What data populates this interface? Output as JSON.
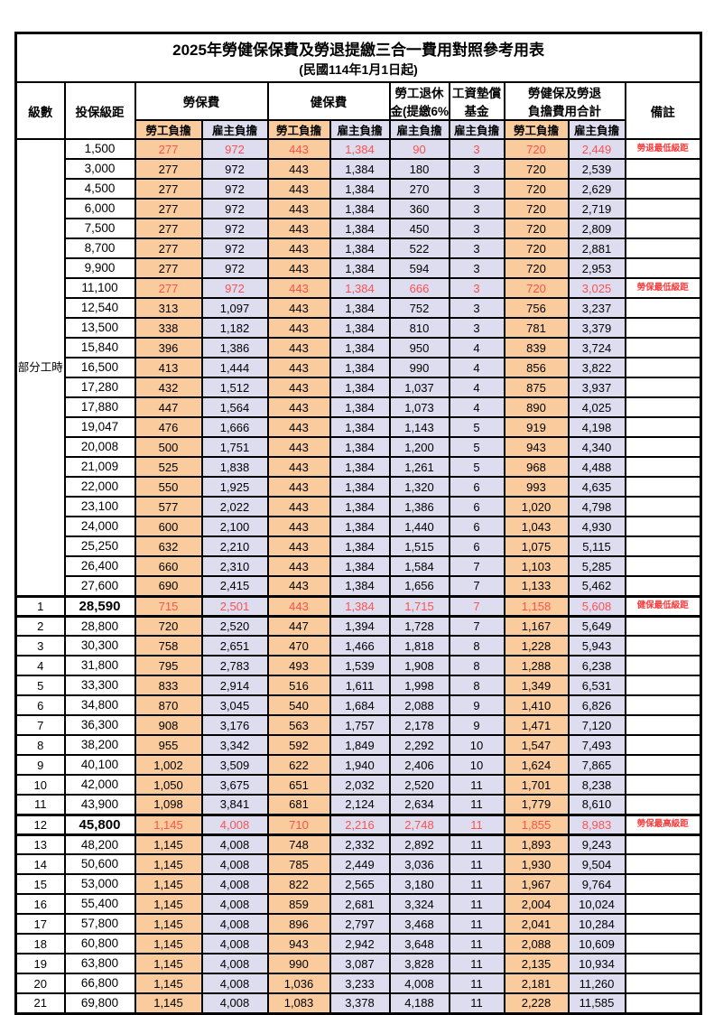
{
  "page": {
    "title": "2025年勞健保保費及勞退提繳三合一費用對照參考用表",
    "subtitle": "(民國114年1月1日起)"
  },
  "colors": {
    "employee_bg": "#FACC9D",
    "employer_bg": "#DEDCEF",
    "highlight_text": "#FA5252",
    "note_text": "#FB3B3B",
    "border": "#000000"
  },
  "table": {
    "headers": {
      "level": "級數",
      "salary": "投保級距",
      "labor_insurance": "勞保費",
      "health_insurance": "健保費",
      "pension_line1": "勞工退休",
      "pension_line2": "金(提繳6%)",
      "arrears_line1": "工資墊償",
      "arrears_line2": "基金",
      "total_line1": "勞健保及勞退",
      "total_line2": "負擔費用合計",
      "note": "備註",
      "employee": "勞工負擔",
      "employer": "雇主負擔"
    },
    "part_time_label": "部分工時",
    "rows": [
      {
        "level": "",
        "salary": "1,500",
        "values": [
          "277",
          "972",
          "443",
          "1,384",
          "90",
          "3",
          "720",
          "2,449"
        ],
        "note": "勞退最低級距",
        "red": true,
        "bold": false,
        "thick": false
      },
      {
        "level": "",
        "salary": "3,000",
        "values": [
          "277",
          "972",
          "443",
          "1,384",
          "180",
          "3",
          "720",
          "2,539"
        ],
        "note": "",
        "red": false,
        "bold": false,
        "thick": false
      },
      {
        "level": "",
        "salary": "4,500",
        "values": [
          "277",
          "972",
          "443",
          "1,384",
          "270",
          "3",
          "720",
          "2,629"
        ],
        "note": "",
        "red": false,
        "bold": false,
        "thick": false
      },
      {
        "level": "",
        "salary": "6,000",
        "values": [
          "277",
          "972",
          "443",
          "1,384",
          "360",
          "3",
          "720",
          "2,719"
        ],
        "note": "",
        "red": false,
        "bold": false,
        "thick": false
      },
      {
        "level": "",
        "salary": "7,500",
        "values": [
          "277",
          "972",
          "443",
          "1,384",
          "450",
          "3",
          "720",
          "2,809"
        ],
        "note": "",
        "red": false,
        "bold": false,
        "thick": false
      },
      {
        "level": "",
        "salary": "8,700",
        "values": [
          "277",
          "972",
          "443",
          "1,384",
          "522",
          "3",
          "720",
          "2,881"
        ],
        "note": "",
        "red": false,
        "bold": false,
        "thick": false
      },
      {
        "level": "",
        "salary": "9,900",
        "values": [
          "277",
          "972",
          "443",
          "1,384",
          "594",
          "3",
          "720",
          "2,953"
        ],
        "note": "",
        "red": false,
        "bold": false,
        "thick": false
      },
      {
        "level": "",
        "salary": "11,100",
        "values": [
          "277",
          "972",
          "443",
          "1,384",
          "666",
          "3",
          "720",
          "3,025"
        ],
        "note": "勞保最低級距",
        "red": true,
        "bold": false,
        "thick": false
      },
      {
        "level": "",
        "salary": "12,540",
        "values": [
          "313",
          "1,097",
          "443",
          "1,384",
          "752",
          "3",
          "756",
          "3,237"
        ],
        "note": "",
        "red": false,
        "bold": false,
        "thick": false
      },
      {
        "level": "",
        "salary": "13,500",
        "values": [
          "338",
          "1,182",
          "443",
          "1,384",
          "810",
          "3",
          "781",
          "3,379"
        ],
        "note": "",
        "red": false,
        "bold": false,
        "thick": false
      },
      {
        "level": "",
        "salary": "15,840",
        "values": [
          "396",
          "1,386",
          "443",
          "1,384",
          "950",
          "4",
          "839",
          "3,724"
        ],
        "note": "",
        "red": false,
        "bold": false,
        "thick": false
      },
      {
        "level": "",
        "salary": "16,500",
        "values": [
          "413",
          "1,444",
          "443",
          "1,384",
          "990",
          "4",
          "856",
          "3,822"
        ],
        "note": "",
        "red": false,
        "bold": false,
        "thick": false
      },
      {
        "level": "",
        "salary": "17,280",
        "values": [
          "432",
          "1,512",
          "443",
          "1,384",
          "1,037",
          "4",
          "875",
          "3,937"
        ],
        "note": "",
        "red": false,
        "bold": false,
        "thick": false
      },
      {
        "level": "",
        "salary": "17,880",
        "values": [
          "447",
          "1,564",
          "443",
          "1,384",
          "1,073",
          "4",
          "890",
          "4,025"
        ],
        "note": "",
        "red": false,
        "bold": false,
        "thick": false
      },
      {
        "level": "",
        "salary": "19,047",
        "values": [
          "476",
          "1,666",
          "443",
          "1,384",
          "1,143",
          "5",
          "919",
          "4,198"
        ],
        "note": "",
        "red": false,
        "bold": false,
        "thick": false
      },
      {
        "level": "",
        "salary": "20,008",
        "values": [
          "500",
          "1,751",
          "443",
          "1,384",
          "1,200",
          "5",
          "943",
          "4,340"
        ],
        "note": "",
        "red": false,
        "bold": false,
        "thick": false
      },
      {
        "level": "",
        "salary": "21,009",
        "values": [
          "525",
          "1,838",
          "443",
          "1,384",
          "1,261",
          "5",
          "968",
          "4,488"
        ],
        "note": "",
        "red": false,
        "bold": false,
        "thick": false
      },
      {
        "level": "",
        "salary": "22,000",
        "values": [
          "550",
          "1,925",
          "443",
          "1,384",
          "1,320",
          "6",
          "993",
          "4,635"
        ],
        "note": "",
        "red": false,
        "bold": false,
        "thick": false
      },
      {
        "level": "",
        "salary": "23,100",
        "values": [
          "577",
          "2,022",
          "443",
          "1,384",
          "1,386",
          "6",
          "1,020",
          "4,798"
        ],
        "note": "",
        "red": false,
        "bold": false,
        "thick": false
      },
      {
        "level": "",
        "salary": "24,000",
        "values": [
          "600",
          "2,100",
          "443",
          "1,384",
          "1,440",
          "6",
          "1,043",
          "4,930"
        ],
        "note": "",
        "red": false,
        "bold": false,
        "thick": false
      },
      {
        "level": "",
        "salary": "25,250",
        "values": [
          "632",
          "2,210",
          "443",
          "1,384",
          "1,515",
          "6",
          "1,075",
          "5,115"
        ],
        "note": "",
        "red": false,
        "bold": false,
        "thick": false
      },
      {
        "level": "",
        "salary": "26,400",
        "values": [
          "660",
          "2,310",
          "443",
          "1,384",
          "1,584",
          "7",
          "1,103",
          "5,285"
        ],
        "note": "",
        "red": false,
        "bold": false,
        "thick": false
      },
      {
        "level": "",
        "salary": "27,600",
        "values": [
          "690",
          "2,415",
          "443",
          "1,384",
          "1,656",
          "7",
          "1,133",
          "5,462"
        ],
        "note": "",
        "red": false,
        "bold": false,
        "thick": false
      },
      {
        "level": "1",
        "salary": "28,590",
        "values": [
          "715",
          "2,501",
          "443",
          "1,384",
          "1,715",
          "7",
          "1,158",
          "5,608"
        ],
        "note": "健保最低級距",
        "red": true,
        "bold": true,
        "thick": true
      },
      {
        "level": "2",
        "salary": "28,800",
        "values": [
          "720",
          "2,520",
          "447",
          "1,394",
          "1,728",
          "7",
          "1,167",
          "5,649"
        ],
        "note": "",
        "red": false,
        "bold": false,
        "thick": false
      },
      {
        "level": "3",
        "salary": "30,300",
        "values": [
          "758",
          "2,651",
          "470",
          "1,466",
          "1,818",
          "8",
          "1,228",
          "5,943"
        ],
        "note": "",
        "red": false,
        "bold": false,
        "thick": false
      },
      {
        "level": "4",
        "salary": "31,800",
        "values": [
          "795",
          "2,783",
          "493",
          "1,539",
          "1,908",
          "8",
          "1,288",
          "6,238"
        ],
        "note": "",
        "red": false,
        "bold": false,
        "thick": false
      },
      {
        "level": "5",
        "salary": "33,300",
        "values": [
          "833",
          "2,914",
          "516",
          "1,611",
          "1,998",
          "8",
          "1,349",
          "6,531"
        ],
        "note": "",
        "red": false,
        "bold": false,
        "thick": false
      },
      {
        "level": "6",
        "salary": "34,800",
        "values": [
          "870",
          "3,045",
          "540",
          "1,684",
          "2,088",
          "9",
          "1,410",
          "6,826"
        ],
        "note": "",
        "red": false,
        "bold": false,
        "thick": false
      },
      {
        "level": "7",
        "salary": "36,300",
        "values": [
          "908",
          "3,176",
          "563",
          "1,757",
          "2,178",
          "9",
          "1,471",
          "7,120"
        ],
        "note": "",
        "red": false,
        "bold": false,
        "thick": false
      },
      {
        "level": "8",
        "salary": "38,200",
        "values": [
          "955",
          "3,342",
          "592",
          "1,849",
          "2,292",
          "10",
          "1,547",
          "7,493"
        ],
        "note": "",
        "red": false,
        "bold": false,
        "thick": false
      },
      {
        "level": "9",
        "salary": "40,100",
        "values": [
          "1,002",
          "3,509",
          "622",
          "1,940",
          "2,406",
          "10",
          "1,624",
          "7,865"
        ],
        "note": "",
        "red": false,
        "bold": false,
        "thick": false
      },
      {
        "level": "10",
        "salary": "42,000",
        "values": [
          "1,050",
          "3,675",
          "651",
          "2,032",
          "2,520",
          "11",
          "1,701",
          "8,238"
        ],
        "note": "",
        "red": false,
        "bold": false,
        "thick": false
      },
      {
        "level": "11",
        "salary": "43,900",
        "values": [
          "1,098",
          "3,841",
          "681",
          "2,124",
          "2,634",
          "11",
          "1,779",
          "8,610"
        ],
        "note": "",
        "red": false,
        "bold": false,
        "thick": false
      },
      {
        "level": "12",
        "salary": "45,800",
        "values": [
          "1,145",
          "4,008",
          "710",
          "2,216",
          "2,748",
          "11",
          "1,855",
          "8,983"
        ],
        "note": "勞保最高級距",
        "red": true,
        "bold": true,
        "thick": true
      },
      {
        "level": "13",
        "salary": "48,200",
        "values": [
          "1,145",
          "4,008",
          "748",
          "2,332",
          "2,892",
          "11",
          "1,893",
          "9,243"
        ],
        "note": "",
        "red": false,
        "bold": false,
        "thick": false
      },
      {
        "level": "14",
        "salary": "50,600",
        "values": [
          "1,145",
          "4,008",
          "785",
          "2,449",
          "3,036",
          "11",
          "1,930",
          "9,504"
        ],
        "note": "",
        "red": false,
        "bold": false,
        "thick": false
      },
      {
        "level": "15",
        "salary": "53,000",
        "values": [
          "1,145",
          "4,008",
          "822",
          "2,565",
          "3,180",
          "11",
          "1,967",
          "9,764"
        ],
        "note": "",
        "red": false,
        "bold": false,
        "thick": false
      },
      {
        "level": "16",
        "salary": "55,400",
        "values": [
          "1,145",
          "4,008",
          "859",
          "2,681",
          "3,324",
          "11",
          "2,004",
          "10,024"
        ],
        "note": "",
        "red": false,
        "bold": false,
        "thick": false
      },
      {
        "level": "17",
        "salary": "57,800",
        "values": [
          "1,145",
          "4,008",
          "896",
          "2,797",
          "3,468",
          "11",
          "2,041",
          "10,284"
        ],
        "note": "",
        "red": false,
        "bold": false,
        "thick": false
      },
      {
        "level": "18",
        "salary": "60,800",
        "values": [
          "1,145",
          "4,008",
          "943",
          "2,942",
          "3,648",
          "11",
          "2,088",
          "10,609"
        ],
        "note": "",
        "red": false,
        "bold": false,
        "thick": false
      },
      {
        "level": "19",
        "salary": "63,800",
        "values": [
          "1,145",
          "4,008",
          "990",
          "3,087",
          "3,828",
          "11",
          "2,135",
          "10,934"
        ],
        "note": "",
        "red": false,
        "bold": false,
        "thick": false
      },
      {
        "level": "20",
        "salary": "66,800",
        "values": [
          "1,145",
          "4,008",
          "1,036",
          "3,233",
          "4,008",
          "11",
          "2,181",
          "11,260"
        ],
        "note": "",
        "red": false,
        "bold": false,
        "thick": false
      },
      {
        "level": "21",
        "salary": "69,800",
        "values": [
          "1,145",
          "4,008",
          "1,083",
          "3,378",
          "4,188",
          "11",
          "2,228",
          "11,585"
        ],
        "note": "",
        "red": false,
        "bold": false,
        "thick": false
      }
    ]
  }
}
